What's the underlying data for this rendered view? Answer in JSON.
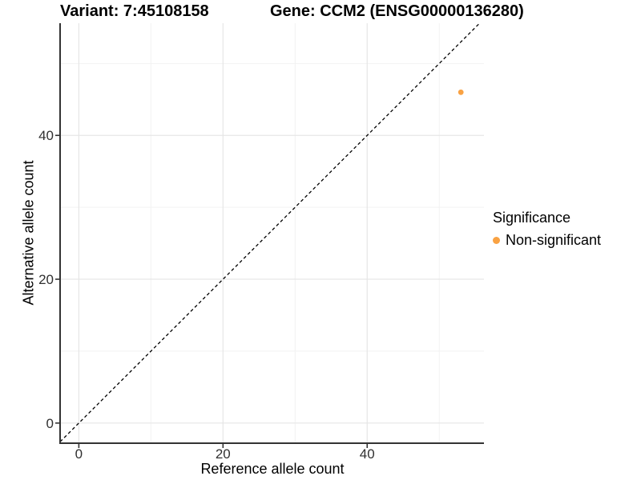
{
  "titles": {
    "variant": "Variant: 7:45108158",
    "gene": "Gene: CCM2 (ENSG00000136280)"
  },
  "axes": {
    "x_label": "Reference allele count",
    "y_label": "Alternative allele count"
  },
  "legend": {
    "title": "Significance",
    "items": [
      {
        "label": "Non-significant",
        "color": "#F9A243"
      }
    ]
  },
  "chart_data": {
    "type": "scatter",
    "title": "Variant: 7:45108158   Gene: CCM2 (ENSG00000136280)",
    "xlabel": "Reference allele count",
    "ylabel": "Alternative allele count",
    "xlim": [
      -2.6,
      56.2
    ],
    "ylim": [
      -2.8,
      55.6
    ],
    "x_ticks": [
      0,
      20,
      40
    ],
    "y_ticks": [
      0,
      20,
      40
    ],
    "x_minor_ticks": [
      10,
      30,
      50
    ],
    "y_minor_ticks": [
      10,
      30,
      50
    ],
    "grid": true,
    "legend_position": "right",
    "series": [
      {
        "name": "Non-significant",
        "color": "#F9A243",
        "points": [
          {
            "x": 53,
            "y": 46
          }
        ]
      }
    ],
    "reference_line": {
      "kind": "identity",
      "slope": 1,
      "intercept": 0,
      "style": "dashed",
      "color": "#000000"
    }
  },
  "style": {
    "grid_major_color": "#e6e6e6",
    "grid_minor_color": "#f2f2f2",
    "axis_line_color": "#333333",
    "tick_color": "#333333",
    "point_color": "#F9A243"
  }
}
